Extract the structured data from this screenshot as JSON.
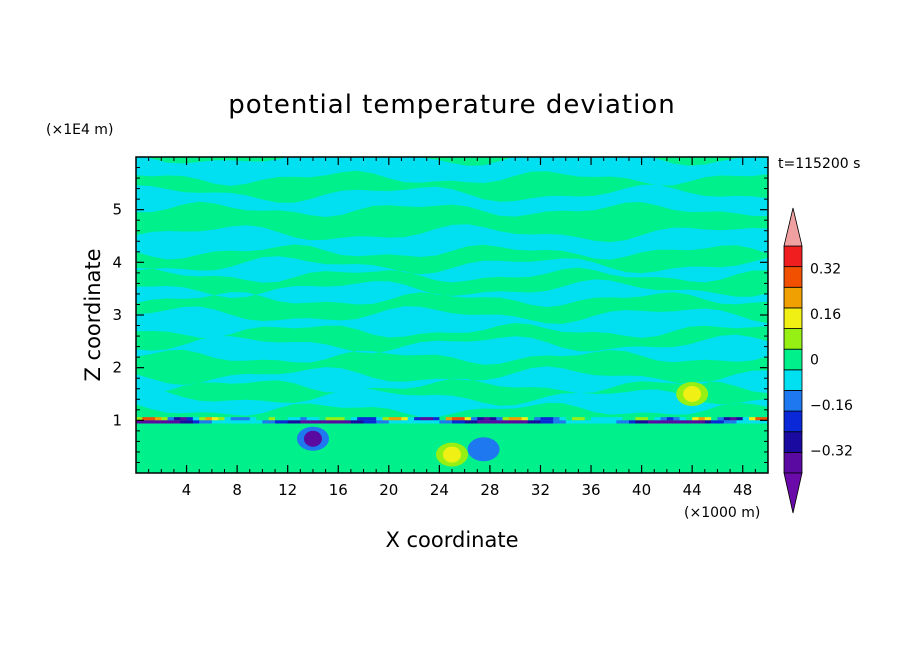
{
  "chart_data": {
    "type": "heatmap",
    "title": "potential temperature deviation",
    "xlabel": "X coordinate",
    "ylabel": "Z coordinate",
    "x_unit": "(×1000 m)",
    "y_unit": "(×1E4 m)",
    "time_label": "t=115200 s",
    "xlim": [
      0,
      50
    ],
    "ylim": [
      0,
      6
    ],
    "x_ticks": [
      4,
      8,
      12,
      16,
      20,
      24,
      28,
      32,
      36,
      40,
      44,
      48
    ],
    "y_ticks": [
      1,
      2,
      3,
      4,
      5
    ],
    "colorbar": {
      "levels": [
        -0.4,
        -0.32,
        -0.24,
        -0.16,
        -0.08,
        0,
        0.08,
        0.16,
        0.24,
        0.32,
        0.4
      ],
      "tick_labels": [
        "0.32",
        "0.16",
        "0",
        "−0.16",
        "−0.32"
      ],
      "tick_values": [
        0.32,
        0.16,
        0,
        -0.16,
        -0.32
      ],
      "colors": [
        "#5a0aa0",
        "#1a0aa0",
        "#0a28d8",
        "#1e78f0",
        "#00e0f0",
        "#00f08c",
        "#96f014",
        "#f0f014",
        "#f0a000",
        "#f05000",
        "#f01e1e"
      ],
      "over_color": "#f0a0a0",
      "under_color": "#6a0aa8"
    },
    "field_description": "Alternating horizontal bands of values 0 to 0.08 and -0.08 to 0 above z=1.2; strong thin anomaly layer near z=1 with values from -0.4 to +0.4; negative pocket near x=13-15, z=0.5-1.",
    "bands": [
      {
        "z0": 0.0,
        "z1": 0.85,
        "class": 0.05
      },
      {
        "z0": 1.2,
        "z1": 1.45,
        "class": -0.05
      },
      {
        "z0": 1.65,
        "z1": 1.85,
        "class": -0.05
      },
      {
        "z0": 2.2,
        "z1": 2.45,
        "class": -0.05
      },
      {
        "z0": 2.7,
        "z1": 3.0,
        "class": -0.05
      },
      {
        "z0": 3.3,
        "z1": 3.5,
        "class": -0.05
      },
      {
        "z0": 3.75,
        "z1": 3.95,
        "class": -0.05
      },
      {
        "z0": 4.2,
        "z1": 4.55,
        "class": -0.05
      },
      {
        "z0": 5.0,
        "z1": 5.3,
        "class": -0.05
      },
      {
        "z0": 5.6,
        "z1": 6.0,
        "class": -0.05
      }
    ],
    "anomaly_layer": {
      "z_center": 1.0,
      "thickness": 0.12,
      "min": -0.4,
      "max": 0.4
    },
    "pockets": [
      {
        "x": 14.0,
        "z": 0.65,
        "value": -0.4
      },
      {
        "x": 27.5,
        "z": 0.45,
        "value": -0.12
      },
      {
        "x": 25.0,
        "z": 0.35,
        "value": 0.2
      },
      {
        "x": 44.0,
        "z": 1.5,
        "value": 0.2
      }
    ]
  }
}
